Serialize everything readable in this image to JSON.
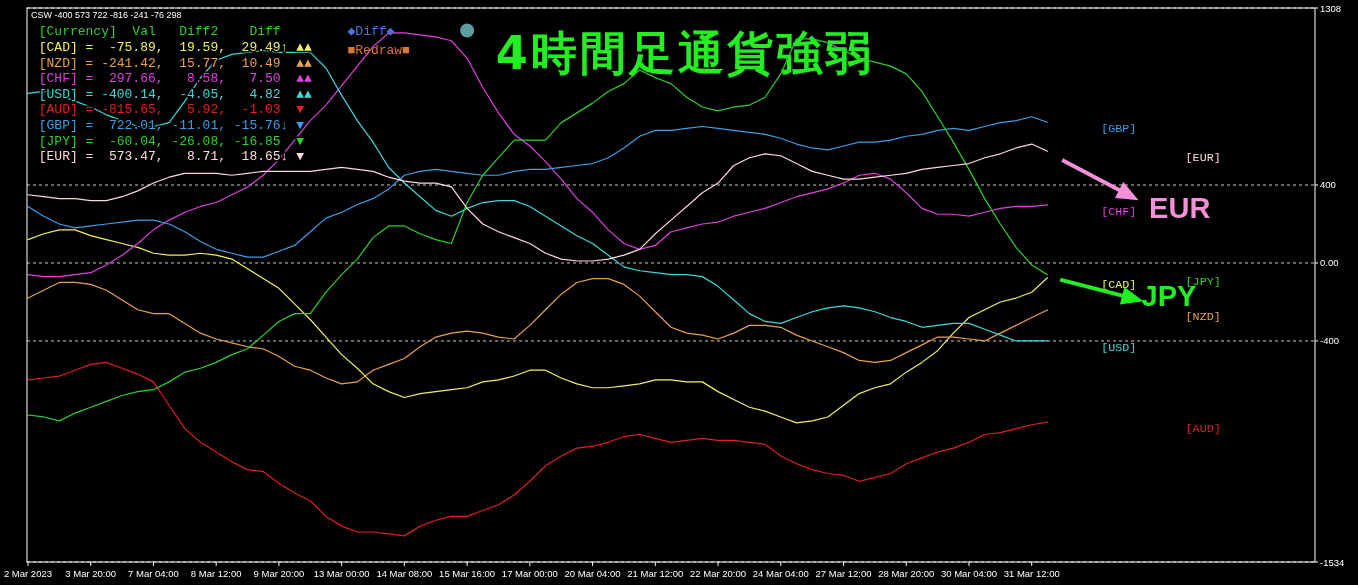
{
  "chart_data": {
    "type": "line",
    "title": "4時間足通貨強弱",
    "annotations": [
      "CSW -400 573 722 -816 -241 -76 298",
      "[Currency]  Val   Diff2    Diff",
      "[CAD] =  -75.89,  19.59,  29.49↑ ▲▲",
      "[NZD] = -241.42,  15.77,  10.49  ▲▲",
      "[CHF] =  297.66,   8.58,   7.50  ▲▲",
      "[USD] = -400.14,  -4.05,   4.82  ▲▲",
      "[AUD] = -815.65,   5.92,  -1.03  ▼",
      "[GBP] =  722.01, -11.01, -15.76↓ ▼",
      "[JPY] =  -60.04, -26.08, -16.85  ▼",
      "[EUR] =  573.47,   8.71,  18.65↓ ▼",
      "◆Diff◆",
      "■Redraw■",
      "EUR",
      "JPY"
    ],
    "categories": [
      "2 Mar 2023",
      null,
      null,
      null,
      "3 Mar 20:00",
      null,
      null,
      null,
      "7 Mar 04:00",
      null,
      null,
      null,
      "8 Mar 12:00",
      null,
      null,
      null,
      "9 Mar 20:00",
      null,
      null,
      null,
      "13 Mar 00:00",
      null,
      null,
      null,
      "14 Mar 08:00",
      null,
      null,
      null,
      "15 Mar 16:00",
      null,
      null,
      null,
      "17 Mar 00:00",
      null,
      null,
      null,
      "20 Mar 04:00",
      null,
      null,
      null,
      "21 Mar 12:00",
      null,
      null,
      null,
      "22 Mar 20:00",
      null,
      null,
      null,
      "24 Mar 04:00",
      null,
      null,
      null,
      "27 Mar 12:00",
      null,
      null,
      null,
      "28 Mar 20:00",
      null,
      null,
      null,
      "30 Mar 04:00",
      null,
      null,
      null,
      "31 Mar 12:00",
      null
    ],
    "ylim": [
      -1534,
      1308
    ],
    "yticks": [
      1308,
      400,
      {
        "value": 0,
        "label": "0.00"
      },
      -400,
      -1534
    ],
    "grid": "y",
    "series": [
      {
        "name": "[CAD]",
        "color": "#f0f060",
        "values": [
          120,
          150,
          170,
          170,
          140,
          120,
          100,
          80,
          50,
          40,
          40,
          50,
          40,
          20,
          -30,
          -80,
          -130,
          -210,
          -290,
          -380,
          -470,
          -540,
          -620,
          -660,
          -690,
          -670,
          -660,
          -650,
          -640,
          -610,
          -600,
          -580,
          -550,
          -550,
          -590,
          -620,
          -640,
          -640,
          -630,
          -620,
          -600,
          -600,
          -610,
          -610,
          -660,
          -700,
          -740,
          -760,
          -790,
          -820,
          -810,
          -790,
          -730,
          -670,
          -640,
          -620,
          -560,
          -510,
          -450,
          -360,
          -280,
          -240,
          -200,
          -180,
          -150,
          -76
        ]
      },
      {
        "name": "[NZD]",
        "color": "#e8a050",
        "values": [
          -180,
          -140,
          -100,
          -100,
          -110,
          -140,
          -190,
          -240,
          -260,
          -260,
          -310,
          -360,
          -390,
          -410,
          -430,
          -440,
          -480,
          -530,
          -550,
          -590,
          -620,
          -610,
          -550,
          -520,
          -490,
          -430,
          -380,
          -360,
          -350,
          -360,
          -380,
          -390,
          -320,
          -240,
          -160,
          -100,
          -80,
          -80,
          -110,
          -170,
          -250,
          -330,
          -360,
          -370,
          -390,
          -360,
          -320,
          -320,
          -330,
          -370,
          -400,
          -430,
          -460,
          -500,
          -510,
          -500,
          -460,
          -420,
          -380,
          -380,
          -390,
          -400,
          -360,
          -320,
          -280,
          -241
        ]
      },
      {
        "name": "[CHF]",
        "color": "#e040e0",
        "values": [
          -60,
          -70,
          -70,
          -60,
          -50,
          -10,
          40,
          100,
          170,
          220,
          260,
          290,
          310,
          350,
          390,
          450,
          530,
          630,
          730,
          810,
          910,
          1010,
          1110,
          1180,
          1180,
          1170,
          1160,
          1140,
          1050,
          900,
          770,
          660,
          600,
          520,
          430,
          330,
          260,
          170,
          100,
          70,
          90,
          160,
          180,
          200,
          210,
          240,
          260,
          280,
          310,
          340,
          360,
          380,
          410,
          450,
          460,
          430,
          360,
          280,
          250,
          250,
          240,
          260,
          280,
          290,
          290,
          298
        ]
      },
      {
        "name": "[USD]",
        "color": "#40d8d8",
        "values": [
          870,
          880,
          860,
          830,
          800,
          760,
          730,
          700,
          700,
          720,
          830,
          950,
          1040,
          1070,
          1080,
          1090,
          1080,
          1080,
          1080,
          1000,
          860,
          730,
          620,
          490,
          410,
          340,
          270,
          240,
          280,
          310,
          320,
          320,
          290,
          240,
          190,
          140,
          100,
          40,
          -20,
          -40,
          -50,
          -60,
          -60,
          -70,
          -120,
          -190,
          -260,
          -300,
          -310,
          -280,
          -250,
          -230,
          -220,
          -230,
          -250,
          -280,
          -300,
          -330,
          -320,
          -310,
          -310,
          -340,
          -370,
          -400,
          -400,
          -400
        ]
      },
      {
        "name": "[AUD]",
        "color": "#dd2020",
        "values": [
          -600,
          -590,
          -580,
          -550,
          -520,
          -510,
          -540,
          -570,
          -610,
          -730,
          -850,
          -920,
          -970,
          -1020,
          -1060,
          -1070,
          -1130,
          -1180,
          -1220,
          -1300,
          -1350,
          -1380,
          -1380,
          -1390,
          -1400,
          -1350,
          -1320,
          -1300,
          -1300,
          -1270,
          -1240,
          -1190,
          -1120,
          -1040,
          -990,
          -950,
          -940,
          -920,
          -890,
          -880,
          -900,
          -920,
          -910,
          -900,
          -910,
          -910,
          -920,
          -930,
          -990,
          -1030,
          -1060,
          -1080,
          -1090,
          -1120,
          -1100,
          -1080,
          -1030,
          -1000,
          -970,
          -950,
          -920,
          -880,
          -870,
          -850,
          -830,
          -816
        ]
      },
      {
        "name": "[GBP]",
        "color": "#3c9ee8",
        "values": [
          290,
          240,
          200,
          180,
          190,
          200,
          210,
          220,
          220,
          200,
          160,
          110,
          70,
          50,
          30,
          30,
          60,
          90,
          160,
          230,
          260,
          300,
          330,
          380,
          450,
          470,
          480,
          470,
          460,
          450,
          450,
          470,
          480,
          480,
          490,
          500,
          510,
          540,
          590,
          650,
          680,
          680,
          690,
          700,
          690,
          680,
          670,
          660,
          640,
          610,
          590,
          580,
          600,
          620,
          620,
          630,
          650,
          660,
          680,
          690,
          680,
          700,
          720,
          730,
          750,
          722
        ]
      },
      {
        "name": "[JPY]",
        "color": "#30d030",
        "values": [
          -780,
          -790,
          -810,
          -770,
          -740,
          -710,
          -680,
          -660,
          -650,
          -610,
          -560,
          -540,
          -510,
          -470,
          -440,
          -370,
          -300,
          -260,
          -260,
          -150,
          -60,
          20,
          130,
          190,
          190,
          150,
          120,
          100,
          310,
          450,
          540,
          630,
          630,
          630,
          720,
          770,
          820,
          880,
          920,
          990,
          950,
          920,
          850,
          800,
          780,
          800,
          810,
          850,
          970,
          1150,
          1150,
          1130,
          1090,
          1050,
          1030,
          1010,
          970,
          880,
          750,
          620,
          480,
          330,
          200,
          80,
          -10,
          -60
        ]
      },
      {
        "name": "[EUR]",
        "color": "#ffd8d8",
        "values": [
          350,
          340,
          330,
          330,
          320,
          320,
          340,
          370,
          410,
          440,
          460,
          460,
          460,
          450,
          460,
          470,
          470,
          470,
          470,
          480,
          490,
          480,
          470,
          440,
          420,
          410,
          410,
          390,
          280,
          200,
          160,
          130,
          100,
          50,
          20,
          10,
          10,
          20,
          40,
          70,
          150,
          220,
          290,
          360,
          410,
          500,
          540,
          560,
          550,
          510,
          470,
          450,
          430,
          430,
          440,
          450,
          460,
          480,
          490,
          500,
          510,
          540,
          560,
          590,
          610,
          573
        ]
      }
    ]
  }
}
